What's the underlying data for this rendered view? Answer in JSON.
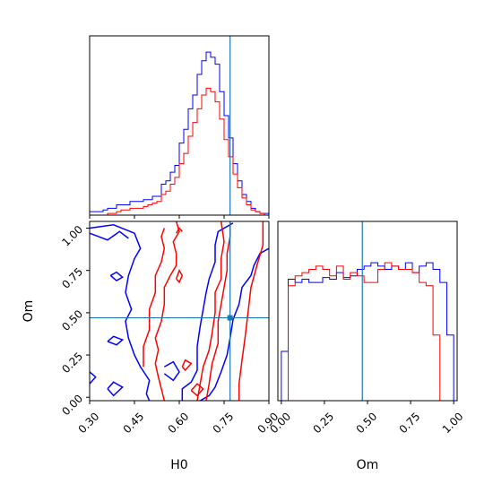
{
  "chart_data": {
    "type": "corner",
    "parameters": [
      "H0",
      "Om"
    ],
    "truth": {
      "H0": 0.77,
      "Om": 0.47
    },
    "colors": {
      "series_a": "#0000ff",
      "series_b": "#ff0000",
      "truth": "#1f77b4"
    },
    "panels": [
      {
        "id": "hist-H0",
        "type": "histogram",
        "xlim": [
          0.3,
          0.9
        ],
        "bin_edges": [
          0.3,
          0.315,
          0.33,
          0.345,
          0.36,
          0.375,
          0.39,
          0.405,
          0.42,
          0.435,
          0.45,
          0.465,
          0.48,
          0.495,
          0.51,
          0.525,
          0.54,
          0.555,
          0.57,
          0.585,
          0.6,
          0.615,
          0.63,
          0.645,
          0.66,
          0.675,
          0.69,
          0.705,
          0.72,
          0.735,
          0.75,
          0.765,
          0.78,
          0.795,
          0.81,
          0.825,
          0.84,
          0.855,
          0.87,
          0.885,
          0.9
        ],
        "series": [
          {
            "color": "series_a",
            "counts": [
              2,
              2,
              2,
              3,
              4,
              4,
              6,
              6,
              6,
              8,
              8,
              8,
              9,
              9,
              11,
              11,
              18,
              20,
              25,
              29,
              42,
              50,
              62,
              70,
              82,
              90,
              95,
              92,
              88,
              72,
              58,
              45,
              30,
              20,
              12,
              8,
              4,
              2,
              1,
              1
            ]
          },
          {
            "color": "series_b",
            "counts": [
              0,
              0,
              0,
              0,
              1,
              1,
              2,
              3,
              3,
              4,
              4,
              4,
              5,
              6,
              7,
              8,
              12,
              14,
              18,
              22,
              30,
              36,
              46,
              54,
              62,
              70,
              74,
              72,
              66,
              56,
              44,
              34,
              24,
              16,
              10,
              6,
              3,
              2,
              1,
              0
            ]
          }
        ]
      },
      {
        "id": "hist-Om",
        "type": "histogram",
        "xlim": [
          -0.02,
          1.02
        ],
        "bin_edges": [
          0.0,
          0.04,
          0.08,
          0.12,
          0.16,
          0.2,
          0.24,
          0.28,
          0.32,
          0.36,
          0.4,
          0.44,
          0.48,
          0.52,
          0.56,
          0.6,
          0.64,
          0.68,
          0.72,
          0.76,
          0.8,
          0.84,
          0.88,
          0.92,
          0.96,
          1.0
        ],
        "series": [
          {
            "color": "series_a",
            "counts": [
              30,
              74,
              72,
              74,
              72,
              72,
              75,
              74,
              78,
              75,
              76,
              80,
              82,
              84,
              82,
              80,
              82,
              80,
              84,
              78,
              82,
              84,
              80,
              72,
              40
            ]
          },
          {
            "color": "series_b",
            "counts": [
              0,
              70,
              76,
              78,
              80,
              82,
              80,
              76,
              82,
              74,
              78,
              76,
              72,
              72,
              80,
              84,
              82,
              80,
              80,
              78,
              72,
              70,
              40,
              0,
              0
            ]
          }
        ]
      },
      {
        "id": "contour-H0-Om",
        "type": "contour",
        "xlim": [
          0.3,
          0.9
        ],
        "ylim": [
          -0.02,
          1.04
        ],
        "series": [
          {
            "color": "series_a",
            "paths": [
              [
                [
                  0.3,
                  1.0
                ],
                [
                  0.38,
                  1.02
                ],
                [
                  0.45,
                  0.97
                ],
                [
                  0.47,
                  0.88
                ],
                [
                  0.45,
                  0.82
                ],
                [
                  0.43,
                  0.72
                ],
                [
                  0.42,
                  0.62
                ],
                [
                  0.44,
                  0.52
                ],
                [
                  0.42,
                  0.45
                ],
                [
                  0.43,
                  0.35
                ],
                [
                  0.45,
                  0.25
                ],
                [
                  0.47,
                  0.18
                ],
                [
                  0.5,
                  0.1
                ],
                [
                  0.49,
                  0.02
                ],
                [
                  0.5,
                  -0.02
                ]
              ],
              [
                [
                  0.3,
                  0.97
                ],
                [
                  0.33,
                  0.95
                ],
                [
                  0.36,
                  0.93
                ],
                [
                  0.4,
                  0.98
                ],
                [
                  0.43,
                  0.94
                ]
              ],
              [
                [
                  0.3,
                  0.15
                ],
                [
                  0.32,
                  0.12
                ],
                [
                  0.3,
                  0.08
                ]
              ],
              [
                [
                  0.36,
                  0.05
                ],
                [
                  0.38,
                  0.09
                ],
                [
                  0.41,
                  0.06
                ],
                [
                  0.38,
                  0.01
                ],
                [
                  0.36,
                  0.05
                ]
              ],
              [
                [
                  0.36,
                  0.33
                ],
                [
                  0.39,
                  0.31
                ],
                [
                  0.41,
                  0.34
                ],
                [
                  0.38,
                  0.36
                ],
                [
                  0.36,
                  0.33
                ]
              ],
              [
                [
                  0.37,
                  0.72
                ],
                [
                  0.39,
                  0.74
                ],
                [
                  0.41,
                  0.71
                ],
                [
                  0.39,
                  0.69
                ],
                [
                  0.37,
                  0.72
                ]
              ],
              [
                [
                  0.9,
                  0.88
                ],
                [
                  0.87,
                  0.85
                ],
                [
                  0.85,
                  0.78
                ],
                [
                  0.84,
                  0.72
                ],
                [
                  0.81,
                  0.65
                ],
                [
                  0.8,
                  0.55
                ],
                [
                  0.78,
                  0.46
                ],
                [
                  0.77,
                  0.35
                ],
                [
                  0.76,
                  0.25
                ],
                [
                  0.74,
                  0.15
                ],
                [
                  0.72,
                  0.06
                ],
                [
                  0.7,
                  0.01
                ],
                [
                  0.67,
                  -0.02
                ]
              ],
              [
                [
                  0.61,
                  -0.02
                ],
                [
                  0.61,
                  0.05
                ],
                [
                  0.64,
                  0.09
                ],
                [
                  0.66,
                  0.16
                ],
                [
                  0.66,
                  0.3
                ],
                [
                  0.67,
                  0.42
                ],
                [
                  0.68,
                  0.52
                ],
                [
                  0.69,
                  0.62
                ],
                [
                  0.7,
                  0.7
                ],
                [
                  0.72,
                  0.8
                ],
                [
                  0.72,
                  0.9
                ],
                [
                  0.73,
                  0.98
                ],
                [
                  0.75,
                  1.0
                ],
                [
                  0.78,
                  1.03
                ]
              ],
              [
                [
                  0.55,
                  0.18
                ],
                [
                  0.58,
                  0.21
                ],
                [
                  0.6,
                  0.15
                ],
                [
                  0.58,
                  0.1
                ],
                [
                  0.55,
                  0.14
                ]
              ]
            ]
          },
          {
            "color": "series_b",
            "paths": [
              [
                [
                  0.55,
                  -0.02
                ],
                [
                  0.54,
                  0.05
                ],
                [
                  0.53,
                  0.12
                ],
                [
                  0.52,
                  0.2
                ],
                [
                  0.53,
                  0.28
                ],
                [
                  0.52,
                  0.35
                ],
                [
                  0.54,
                  0.45
                ],
                [
                  0.55,
                  0.55
                ],
                [
                  0.55,
                  0.65
                ],
                [
                  0.57,
                  0.72
                ],
                [
                  0.59,
                  0.78
                ],
                [
                  0.59,
                  0.85
                ],
                [
                  0.58,
                  0.92
                ],
                [
                  0.6,
                  0.98
                ],
                [
                  0.59,
                  1.04
                ]
              ],
              [
                [
                  0.48,
                  0.18
                ],
                [
                  0.48,
                  0.3
                ],
                [
                  0.5,
                  0.4
                ],
                [
                  0.5,
                  0.52
                ],
                [
                  0.52,
                  0.62
                ],
                [
                  0.52,
                  0.72
                ],
                [
                  0.54,
                  0.8
                ],
                [
                  0.55,
                  0.88
                ],
                [
                  0.54,
                  0.95
                ],
                [
                  0.55,
                  1.0
                ]
              ],
              [
                [
                  0.64,
                  0.04
                ],
                [
                  0.66,
                  0.08
                ],
                [
                  0.68,
                  0.05
                ],
                [
                  0.66,
                  0.01
                ],
                [
                  0.64,
                  0.04
                ]
              ],
              [
                [
                  0.69,
                  -0.02
                ],
                [
                  0.7,
                  0.08
                ],
                [
                  0.71,
                  0.2
                ],
                [
                  0.73,
                  0.32
                ],
                [
                  0.73,
                  0.45
                ],
                [
                  0.74,
                  0.55
                ],
                [
                  0.75,
                  0.65
                ],
                [
                  0.76,
                  0.75
                ],
                [
                  0.76,
                  0.85
                ],
                [
                  0.77,
                  0.95
                ],
                [
                  0.77,
                  1.04
                ]
              ],
              [
                [
                  0.66,
                  -0.02
                ],
                [
                  0.67,
                  0.08
                ],
                [
                  0.68,
                  0.18
                ],
                [
                  0.7,
                  0.28
                ],
                [
                  0.71,
                  0.38
                ],
                [
                  0.72,
                  0.5
                ],
                [
                  0.72,
                  0.62
                ],
                [
                  0.74,
                  0.7
                ],
                [
                  0.74,
                  0.82
                ],
                [
                  0.75,
                  0.92
                ],
                [
                  0.74,
                  1.04
                ]
              ],
              [
                [
                  0.8,
                  -0.02
                ],
                [
                  0.8,
                  0.08
                ],
                [
                  0.81,
                  0.22
                ],
                [
                  0.82,
                  0.35
                ],
                [
                  0.83,
                  0.5
                ],
                [
                  0.84,
                  0.65
                ],
                [
                  0.86,
                  0.78
                ],
                [
                  0.88,
                  0.9
                ],
                [
                  0.88,
                  1.04
                ]
              ],
              [
                [
                  0.61,
                  0.18
                ],
                [
                  0.62,
                  0.22
                ],
                [
                  0.64,
                  0.2
                ],
                [
                  0.62,
                  0.16
                ],
                [
                  0.61,
                  0.18
                ]
              ],
              [
                [
                  0.59,
                  0.7
                ],
                [
                  0.6,
                  0.75
                ],
                [
                  0.61,
                  0.72
                ],
                [
                  0.6,
                  0.68
                ],
                [
                  0.59,
                  0.7
                ]
              ],
              [
                [
                  0.59,
                  0.97
                ],
                [
                  0.6,
                  1.0
                ],
                [
                  0.61,
                  0.98
                ]
              ]
            ]
          }
        ]
      }
    ],
    "x_ticks": {
      "H0": [
        "0.30",
        "0.45",
        "0.60",
        "0.75",
        "0.90"
      ],
      "Om": [
        "0.00",
        "0.25",
        "0.50",
        "0.75",
        "1.00"
      ]
    },
    "y_ticks": {
      "Om": [
        "0.00",
        "0.25",
        "0.50",
        "0.75",
        "1.00"
      ]
    },
    "xlabel": {
      "H0": "H0",
      "Om": "Om"
    },
    "ylabel": {
      "Om": "Om"
    }
  }
}
